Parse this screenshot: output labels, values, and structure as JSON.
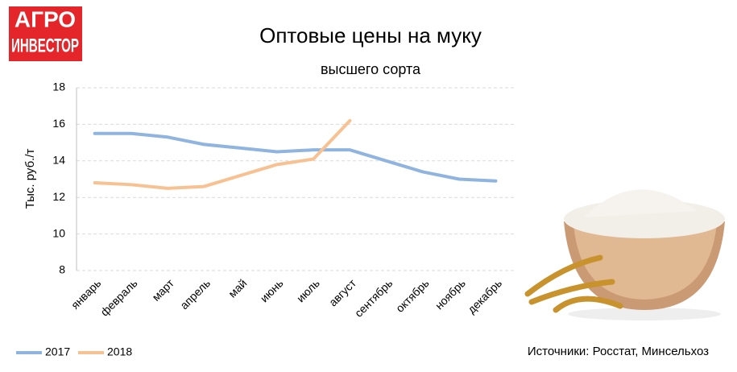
{
  "logo": [
    "АГРО",
    "ИНВЕСТОР"
  ],
  "chart_data": {
    "type": "line",
    "title": "Оптовые цены на муку",
    "subtitle": "высшего сорта",
    "y_label": "Тыс. руб./т",
    "source": "Источники: Росстат, Минсельхоз",
    "categories": [
      "январь",
      "февраль",
      "март",
      "апрель",
      "май",
      "июнь",
      "июль",
      "август",
      "сентябрь",
      "октябрь",
      "ноябрь",
      "декабрь"
    ],
    "series": [
      {
        "name": "2017",
        "color": "#8fb4df",
        "values": [
          15.5,
          15.5,
          15.3,
          14.9,
          14.7,
          14.5,
          14.6,
          14.6,
          14.0,
          13.4,
          13.0,
          12.9
        ]
      },
      {
        "name": "2018",
        "color": "#f8c192",
        "values": [
          12.8,
          12.7,
          12.5,
          12.6,
          13.2,
          13.8,
          14.1,
          16.2,
          null,
          null,
          null,
          null
        ]
      }
    ],
    "ylim": [
      8,
      18
    ],
    "yticks": [
      8,
      10,
      12,
      14,
      16,
      18
    ],
    "grid": true,
    "legend": "bottom-left"
  }
}
